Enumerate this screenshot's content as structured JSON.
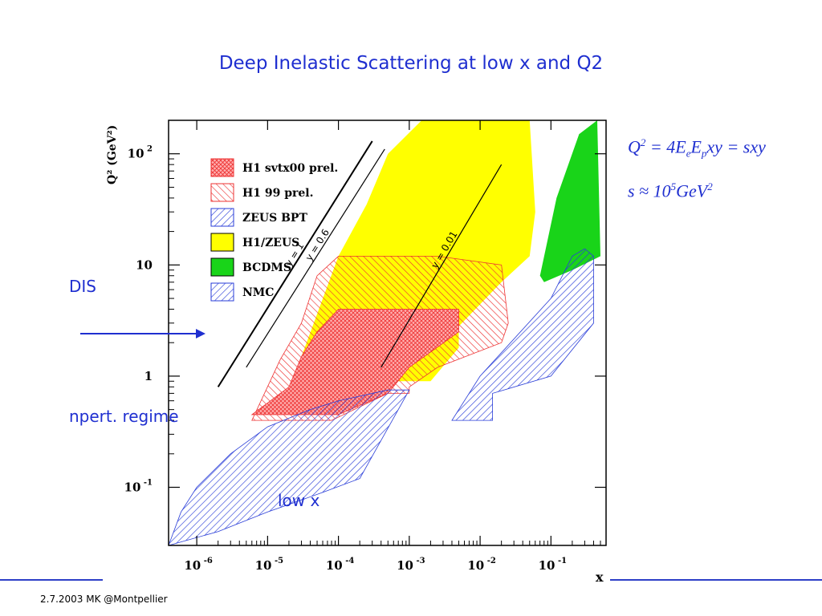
{
  "slide": {
    "title": "Deep Inelastic Scattering at low x and Q2",
    "footer": "2.7.2003 MK @Montpellier",
    "labels": {
      "dis": "DIS",
      "npert": "npert. regime",
      "lowx": "low x"
    },
    "formula1": {
      "lhs": "Q",
      "lhs_exp": "2",
      "mid": " = 4E",
      "sub_e": "e",
      "mid2": "E",
      "sub_p": "p",
      "rhs": "xy = sxy"
    },
    "formula2": {
      "lhs": "s ≈ 10",
      "exp": "5",
      "rhs": "GeV",
      "rhs_exp": "2"
    },
    "accent_color": "#1f2fd0"
  },
  "chart_data": {
    "type": "area",
    "xlabel": "x",
    "ylabel": "Q² (GeV²)",
    "xscale": "log",
    "yscale": "log",
    "xlim": [
      4e-07,
      0.6
    ],
    "ylim": [
      0.03,
      200
    ],
    "x_ticks": [
      {
        "v": 1e-06,
        "label": "10",
        "exp": "-6"
      },
      {
        "v": 1e-05,
        "label": "10",
        "exp": "-5"
      },
      {
        "v": 0.0001,
        "label": "10",
        "exp": "-4"
      },
      {
        "v": 0.001,
        "label": "10",
        "exp": "-3"
      },
      {
        "v": 0.01,
        "label": "10",
        "exp": "-2"
      },
      {
        "v": 0.1,
        "label": "10",
        "exp": "-1"
      }
    ],
    "y_ticks": [
      {
        "v": 0.1,
        "label": "10",
        "exp": "-1"
      },
      {
        "v": 1,
        "label": "1",
        "exp": ""
      },
      {
        "v": 10,
        "label": "10",
        "exp": ""
      },
      {
        "v": 100,
        "label": "10",
        "exp": "2"
      }
    ],
    "legend": {
      "placement": "upper-left",
      "entries": [
        {
          "name": "H1 svtx00 prel.",
          "style": "crosshatch-red"
        },
        {
          "name": "H1 99 prel.",
          "style": "hatch-red"
        },
        {
          "name": "ZEUS BPT",
          "style": "hatch-blue"
        },
        {
          "name": "H1/ZEUS",
          "style": "solid-yellow"
        },
        {
          "name": "BCDMS",
          "style": "solid-green"
        },
        {
          "name": "NMC",
          "style": "hatch-blue"
        }
      ]
    },
    "kinematic_lines": [
      {
        "label": "y = 1",
        "points": [
          [
            2e-06,
            0.8
          ],
          [
            0.0003,
            130
          ]
        ]
      },
      {
        "label": "y = 0.6",
        "points": [
          [
            5e-06,
            1.2
          ],
          [
            0.00045,
            110
          ]
        ]
      },
      {
        "label": "y = 0.01",
        "points": [
          [
            0.0004,
            1.2
          ],
          [
            0.02,
            80
          ]
        ]
      }
    ],
    "series": [
      {
        "name": "H1/ZEUS",
        "style": "solid-yellow",
        "polygon": [
          [
            3e-05,
            1.5
          ],
          [
            0.0001,
            12
          ],
          [
            0.00025,
            35
          ],
          [
            0.0005,
            100
          ],
          [
            0.0015,
            200
          ],
          [
            0.05,
            200
          ],
          [
            0.06,
            30
          ],
          [
            0.05,
            12
          ],
          [
            0.02,
            7
          ],
          [
            0.005,
            2.8
          ],
          [
            0.005,
            1.8
          ],
          [
            0.002,
            0.9
          ],
          [
            8e-05,
            0.9
          ]
        ]
      },
      {
        "name": "BCDMS",
        "style": "solid-green",
        "polygon": [
          [
            0.07,
            8
          ],
          [
            0.12,
            40
          ],
          [
            0.25,
            150
          ],
          [
            0.45,
            200
          ],
          [
            0.5,
            12
          ],
          [
            0.2,
            9
          ],
          [
            0.08,
            7
          ]
        ]
      },
      {
        "name": "NMC",
        "style": "hatch-blue",
        "polygon": [
          [
            0.004,
            0.4
          ],
          [
            0.01,
            1
          ],
          [
            0.1,
            5
          ],
          [
            0.2,
            12
          ],
          [
            0.3,
            14
          ],
          [
            0.4,
            12
          ],
          [
            0.4,
            3
          ],
          [
            0.1,
            1
          ],
          [
            0.015,
            0.7
          ],
          [
            0.015,
            0.4
          ]
        ]
      },
      {
        "name": "H1 99 prel.",
        "style": "hatch-red",
        "polygon": [
          [
            6e-06,
            0.4
          ],
          [
            1.5e-05,
            1.4
          ],
          [
            3e-05,
            3
          ],
          [
            5e-05,
            8
          ],
          [
            0.0001,
            12
          ],
          [
            0.0015,
            12
          ],
          [
            0.0025,
            12
          ],
          [
            0.02,
            10
          ],
          [
            0.025,
            3
          ],
          [
            0.02,
            2
          ],
          [
            0.0025,
            1.2
          ],
          [
            0.001,
            0.8
          ],
          [
            0.001,
            0.7
          ],
          [
            0.0005,
            0.7
          ],
          [
            8e-05,
            0.4
          ]
        ]
      },
      {
        "name": "H1 svtx00 prel.",
        "style": "crosshatch-red",
        "polygon": [
          [
            6e-06,
            0.45
          ],
          [
            2e-05,
            0.8
          ],
          [
            3e-05,
            1.5
          ],
          [
            5e-05,
            2.5
          ],
          [
            0.0001,
            4
          ],
          [
            0.001,
            4
          ],
          [
            0.005,
            4
          ],
          [
            0.005,
            2.5
          ],
          [
            0.001,
            1.2
          ],
          [
            0.0005,
            0.7
          ],
          [
            0.0001,
            0.45
          ]
        ]
      },
      {
        "name": "ZEUS BPT",
        "style": "hatch-blue",
        "polygon": [
          [
            4e-07,
            0.03
          ],
          [
            6e-07,
            0.06
          ],
          [
            1e-06,
            0.1
          ],
          [
            3e-06,
            0.2
          ],
          [
            1e-05,
            0.35
          ],
          [
            4e-05,
            0.5
          ],
          [
            0.0001,
            0.6
          ],
          [
            0.0005,
            0.75
          ],
          [
            0.001,
            0.75
          ],
          [
            0.0002,
            0.12
          ],
          [
            6e-05,
            0.09
          ],
          [
            1e-05,
            0.06
          ],
          [
            2e-06,
            0.04
          ]
        ]
      }
    ]
  }
}
